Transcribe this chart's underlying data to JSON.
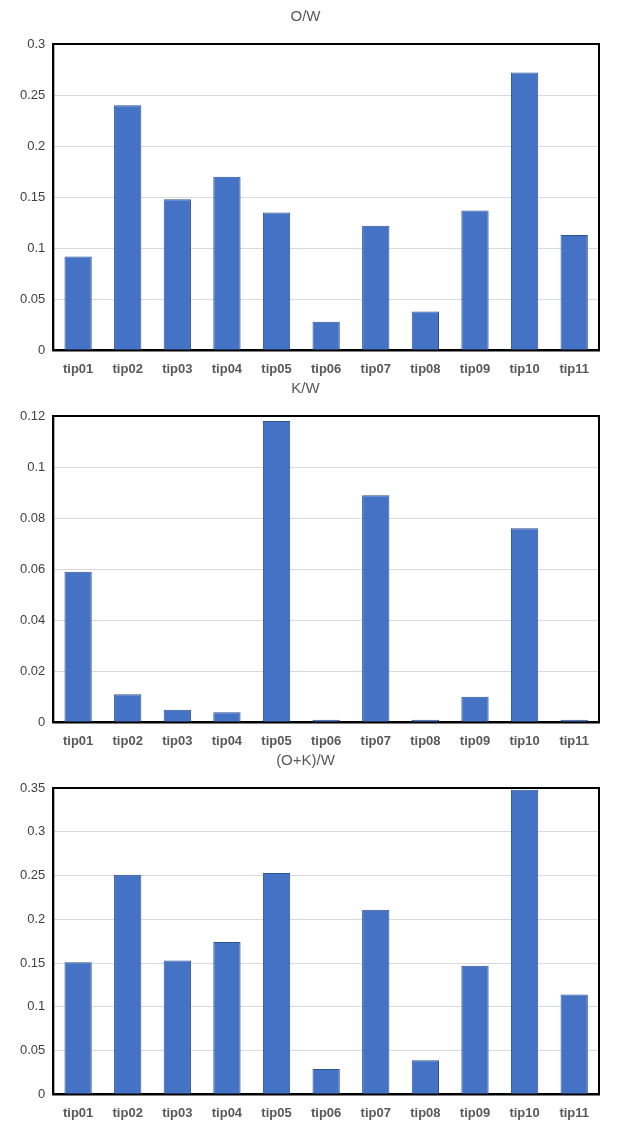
{
  "chart_data": [
    {
      "type": "bar",
      "title": "O/W",
      "categories": [
        "tip01",
        "tip02",
        "tip03",
        "tip04",
        "tip05",
        "tip06",
        "tip07",
        "tip08",
        "tip09",
        "tip10",
        "tip11"
      ],
      "values": [
        0.092,
        0.24,
        0.148,
        0.17,
        0.135,
        0.028,
        0.122,
        0.038,
        0.137,
        0.272,
        0.113
      ],
      "color": "#4472c4",
      "ylim": [
        0,
        0.3
      ],
      "yticks": [
        0,
        0.05,
        0.1,
        0.15,
        0.2,
        0.25,
        0.3
      ],
      "grid": "y",
      "legend": false
    },
    {
      "type": "bar",
      "title": "K/W",
      "categories": [
        "tip01",
        "tip02",
        "tip03",
        "tip04",
        "tip05",
        "tip06",
        "tip07",
        "tip08",
        "tip09",
        "tip10",
        "tip11"
      ],
      "values": [
        0.059,
        0.011,
        0.005,
        0.004,
        0.118,
        0.001,
        0.089,
        0.001,
        0.01,
        0.076,
        0.001
      ],
      "color": "#4472c4",
      "ylim": [
        0,
        0.12
      ],
      "yticks": [
        0,
        0.02,
        0.04,
        0.06,
        0.08,
        0.1,
        0.12
      ],
      "grid": "y",
      "legend": false
    },
    {
      "type": "bar",
      "title": "(O+K)/W",
      "categories": [
        "tip01",
        "tip02",
        "tip03",
        "tip04",
        "tip05",
        "tip06",
        "tip07",
        "tip08",
        "tip09",
        "tip10",
        "tip11"
      ],
      "values": [
        0.151,
        0.251,
        0.153,
        0.174,
        0.253,
        0.029,
        0.211,
        0.039,
        0.147,
        0.348,
        0.114
      ],
      "color": "#4472c4",
      "ylim": [
        0,
        0.35
      ],
      "yticks": [
        0,
        0.05,
        0.1,
        0.15,
        0.2,
        0.25,
        0.3,
        0.35
      ],
      "grid": "y",
      "legend": false
    }
  ]
}
